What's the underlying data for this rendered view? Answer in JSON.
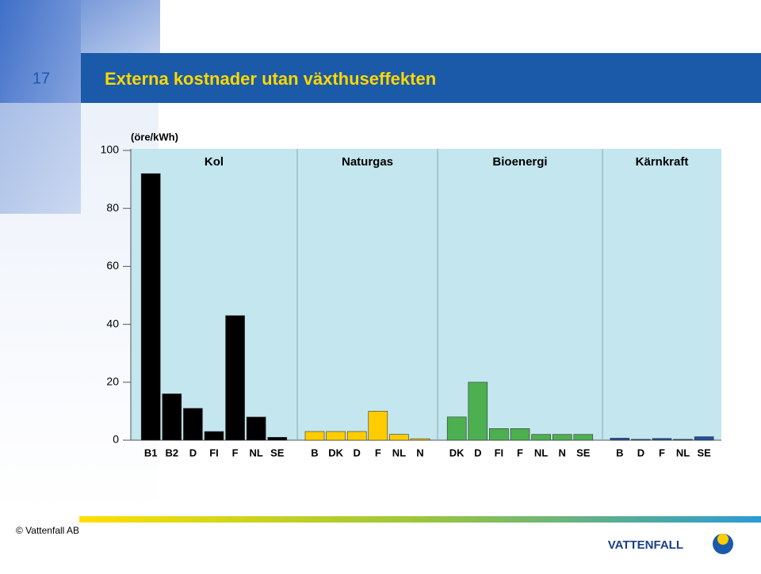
{
  "slide_number": "17",
  "title": "Externa kostnader utan växthuseffekten",
  "footer": "© Vattenfall AB",
  "logo": "VATTENFALL",
  "chart_data": {
    "type": "bar",
    "y_label": "(öre/kWh)",
    "ylim": [
      0,
      100
    ],
    "yticks": [
      0,
      20,
      40,
      60,
      80,
      100
    ],
    "groups": [
      {
        "name": "Kol",
        "color": "#000000",
        "categories": [
          "B1",
          "B2",
          "D",
          "FI",
          "F",
          "NL",
          "SE"
        ],
        "values": [
          92,
          16,
          11,
          3,
          43,
          8,
          1
        ]
      },
      {
        "name": "Naturgas",
        "color": "#ffcc00",
        "categories": [
          "B",
          "DK",
          "D",
          "F",
          "NL",
          "N"
        ],
        "values": [
          3,
          3,
          3,
          10,
          2,
          0.5
        ]
      },
      {
        "name": "Bioenergi",
        "color": "#4caf50",
        "categories": [
          "DK",
          "D",
          "FI",
          "F",
          "NL",
          "N",
          "SE"
        ],
        "values": [
          8,
          20,
          4,
          4,
          2,
          2,
          2
        ]
      },
      {
        "name": "Kärnkraft",
        "color": "#1f4e9c",
        "categories": [
          "B",
          "D",
          "F",
          "NL",
          "SE"
        ],
        "values": [
          0.7,
          0.3,
          0.6,
          0.3,
          1.2
        ]
      }
    ]
  }
}
